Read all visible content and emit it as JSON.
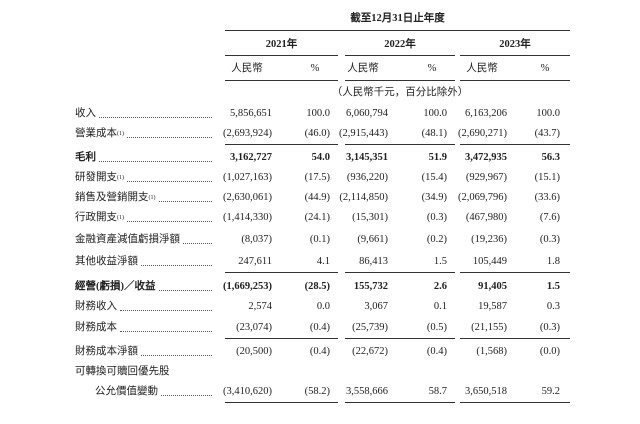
{
  "header": {
    "period": "截至12月31日止年度",
    "years": [
      "2021年",
      "2022年",
      "2023年"
    ],
    "currency": "人民幣",
    "percent": "%",
    "unit_note": "（人民幣千元，百分比除外）"
  },
  "table": {
    "rows": [
      {
        "label": "收入",
        "values": [
          "5,856,651",
          "100.0",
          "6,060,794",
          "100.0",
          "6,163,206",
          "100.0"
        ]
      },
      {
        "label": "營業成本",
        "note": "(1)",
        "values": [
          "(2,693,924)",
          "(46.0)",
          "(2,915,443)",
          "(48.1)",
          "(2,690,271)",
          "(43.7)"
        ]
      },
      {
        "label": "毛利",
        "values": [
          "3,162,727",
          "54.0",
          "3,145,351",
          "51.9",
          "3,472,935",
          "56.3"
        ]
      },
      {
        "label": "研發開支",
        "note": "(1)",
        "values": [
          "(1,027,163)",
          "(17.5)",
          "(936,220)",
          "(15.4)",
          "(929,967)",
          "(15.1)"
        ]
      },
      {
        "label": "銷售及營銷開支",
        "note": "(1)",
        "values": [
          "(2,630,061)",
          "(44.9)",
          "(2,114,850)",
          "(34.9)",
          "(2,069,796)",
          "(33.6)"
        ]
      },
      {
        "label": "行政開支",
        "note": "(1)",
        "values": [
          "(1,414,330)",
          "(24.1)",
          "(15,301)",
          "(0.3)",
          "(467,980)",
          "(7.6)"
        ]
      },
      {
        "label": "金融資產減值虧損淨額",
        "values": [
          "(8,037)",
          "(0.1)",
          "(9,661)",
          "(0.2)",
          "(19,236)",
          "(0.3)"
        ]
      },
      {
        "label": "其他收益淨額",
        "values": [
          "247,611",
          "4.1",
          "86,413",
          "1.5",
          "105,449",
          "1.8"
        ]
      },
      {
        "label": "經營(虧損)／收益",
        "values": [
          "(1,669,253)",
          "(28.5)",
          "155,732",
          "2.6",
          "91,405",
          "1.5"
        ]
      },
      {
        "label": "財務收入",
        "values": [
          "2,574",
          "0.0",
          "3,067",
          "0.1",
          "19,587",
          "0.3"
        ]
      },
      {
        "label": "財務成本",
        "values": [
          "(23,074)",
          "(0.4)",
          "(25,739)",
          "(0.5)",
          "(21,155)",
          "(0.3)"
        ]
      },
      {
        "label": "財務成本淨額",
        "values": [
          "(20,500)",
          "(0.4)",
          "(22,672)",
          "(0.4)",
          "(1,568)",
          "(0.0)"
        ]
      },
      {
        "label": "可轉換可贖回優先股",
        "values": []
      },
      {
        "label": "公允價值變動",
        "values": [
          "(3,410,620)",
          "(58.2)",
          "3,558,666",
          "58.7",
          "3,650,518",
          "59.2"
        ]
      }
    ]
  }
}
